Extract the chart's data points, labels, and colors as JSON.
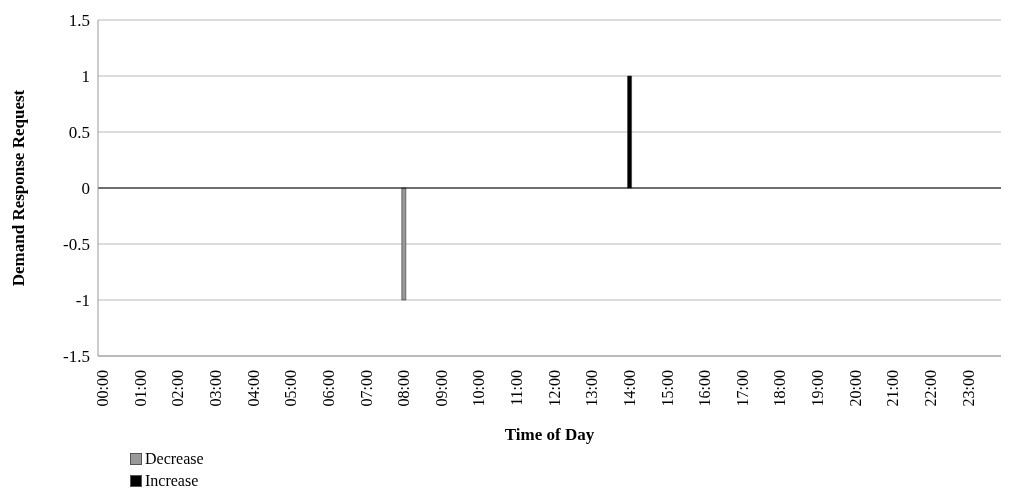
{
  "chart_data": {
    "type": "bar",
    "xlabel": "Time of Day",
    "ylabel": "Demand Response Request",
    "categories": [
      "00:00",
      null,
      null,
      null,
      "01:00",
      null,
      null,
      null,
      "02:00",
      null,
      null,
      null,
      "03:00",
      null,
      null,
      null,
      "04:00",
      null,
      null,
      null,
      "05:00",
      null,
      null,
      null,
      "06:00",
      null,
      null,
      null,
      "07:00",
      null,
      null,
      null,
      "08:00",
      null,
      null,
      null,
      "09:00",
      null,
      null,
      null,
      "10:00",
      null,
      null,
      null,
      "11:00",
      null,
      null,
      null,
      "12:00",
      null,
      null,
      null,
      "13:00",
      null,
      null,
      null,
      "14:00",
      null,
      null,
      null,
      "15:00",
      null,
      null,
      null,
      "16:00",
      null,
      null,
      null,
      "17:00",
      null,
      null,
      null,
      "18:00",
      null,
      null,
      null,
      "19:00",
      null,
      null,
      null,
      "20:00",
      null,
      null,
      null,
      "21:00",
      null,
      null,
      null,
      "22:00",
      null,
      null,
      null,
      "23:00",
      null,
      null,
      null
    ],
    "series": [
      {
        "name": "Decrease",
        "color": "#999999",
        "values": [
          0,
          0,
          0,
          0,
          0,
          0,
          0,
          0,
          0,
          0,
          0,
          0,
          0,
          0,
          0,
          0,
          0,
          0,
          0,
          0,
          0,
          0,
          0,
          0,
          0,
          0,
          0,
          0,
          0,
          0,
          0,
          0,
          -1,
          0,
          0,
          0,
          0,
          0,
          0,
          0,
          0,
          0,
          0,
          0,
          0,
          0,
          0,
          0,
          0,
          0,
          0,
          0,
          0,
          0,
          0,
          0,
          0,
          0,
          0,
          0,
          0,
          0,
          0,
          0,
          0,
          0,
          0,
          0,
          0,
          0,
          0,
          0,
          0,
          0,
          0,
          0,
          0,
          0,
          0,
          0,
          0,
          0,
          0,
          0,
          0,
          0,
          0,
          0,
          0,
          0,
          0,
          0,
          0,
          0,
          0,
          0
        ]
      },
      {
        "name": "Increase",
        "color": "#000000",
        "values": [
          0,
          0,
          0,
          0,
          0,
          0,
          0,
          0,
          0,
          0,
          0,
          0,
          0,
          0,
          0,
          0,
          0,
          0,
          0,
          0,
          0,
          0,
          0,
          0,
          0,
          0,
          0,
          0,
          0,
          0,
          0,
          0,
          0,
          0,
          0,
          0,
          0,
          0,
          0,
          0,
          0,
          0,
          0,
          0,
          0,
          0,
          0,
          0,
          0,
          0,
          0,
          0,
          0,
          0,
          0,
          0,
          1,
          0,
          0,
          0,
          0,
          0,
          0,
          0,
          0,
          0,
          0,
          0,
          0,
          0,
          0,
          0,
          0,
          0,
          0,
          0,
          0,
          0,
          0,
          0,
          0,
          0,
          0,
          0,
          0,
          0,
          0,
          0,
          0,
          0,
          0,
          0,
          0,
          0,
          0,
          0
        ]
      }
    ],
    "stacked": true,
    "ylim": [
      -1.5,
      1.5
    ],
    "yticks": [
      -1.5,
      -1,
      -0.5,
      0,
      0.5,
      1,
      1.5
    ],
    "grid": "y",
    "ref_lines": [
      {
        "axis": "y",
        "value": 0,
        "color": "#000000"
      }
    ],
    "legend": "bottom left"
  }
}
